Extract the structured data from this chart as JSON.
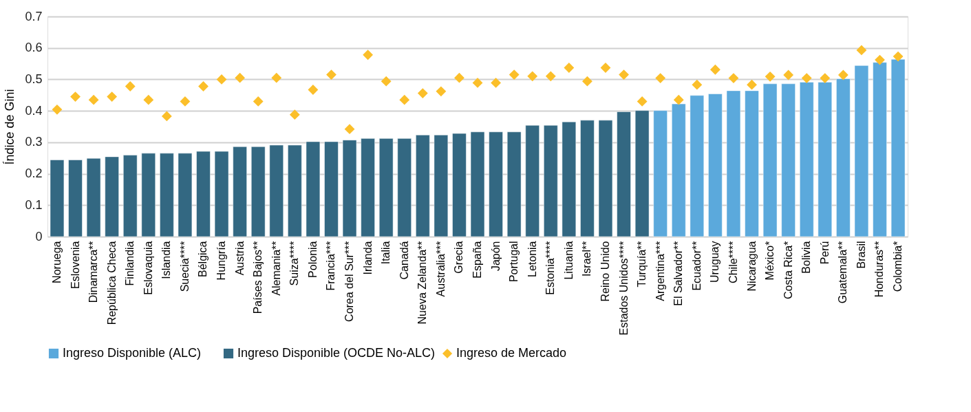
{
  "chart_data": {
    "type": "bar",
    "ylabel": "Índice de Gini",
    "categories": [
      "Noruega",
      "Eslovenia",
      "Dinamarca**",
      "República Checa",
      "Finlandia",
      "Eslovaquia",
      "Islandia",
      "Suecia****",
      "Bélgica",
      "Hungría",
      "Austria",
      "Países Bajos**",
      "Alemania**",
      "Suiza****",
      "Polonia",
      "Francia***",
      "Corea del Sur***",
      "Irlanda",
      "Italia",
      "Canadá",
      "Nueva Zelanda**",
      "Australia***",
      "Grecia",
      "España",
      "Japón",
      "Portugal",
      "Letonia",
      "Estonia****",
      "Lituania",
      "Israel**",
      "Reino Unido",
      "Estados Unidos****",
      "Turquía**",
      "Argentina***",
      "El Salvador**",
      "Ecuador**",
      "Uruguay",
      "Chile****",
      "Nicaragua",
      "México*",
      "Costa Rica*",
      "Bolivia",
      "Perú",
      "Guatemala**",
      "Brasil",
      "Honduras**",
      "Colombia*"
    ],
    "series": [
      {
        "name": "Ingreso Disponible (ALC)",
        "color": "#5ba9dc",
        "values": [
          null,
          null,
          null,
          null,
          null,
          null,
          null,
          null,
          null,
          null,
          null,
          null,
          null,
          null,
          null,
          null,
          null,
          null,
          null,
          null,
          null,
          null,
          null,
          null,
          null,
          null,
          null,
          null,
          null,
          null,
          null,
          null,
          null,
          0.401,
          0.422,
          0.449,
          0.454,
          0.464,
          0.464,
          0.486,
          0.486,
          0.491,
          0.491,
          0.502,
          0.544,
          0.554,
          0.564
        ]
      },
      {
        "name": "Ingreso Disponible (OCDE No-ALC)",
        "color": "#336882",
        "values": [
          0.244,
          0.244,
          0.249,
          0.254,
          0.259,
          0.265,
          0.265,
          0.265,
          0.271,
          0.271,
          0.286,
          0.286,
          0.291,
          0.291,
          0.302,
          0.302,
          0.307,
          0.312,
          0.312,
          0.312,
          0.323,
          0.323,
          0.328,
          0.333,
          0.333,
          0.333,
          0.354,
          0.354,
          0.365,
          0.37,
          0.37,
          0.397,
          0.401,
          null,
          null,
          null,
          null,
          null,
          null,
          null,
          null,
          null,
          null,
          null,
          null,
          null,
          null
        ]
      },
      {
        "name": "Ingreso de Mercado",
        "type": "scatter",
        "marker": "diamond",
        "color": "#fbbf2a",
        "values": [
          0.404,
          0.445,
          0.435,
          0.445,
          0.478,
          0.435,
          0.383,
          0.43,
          0.478,
          0.5,
          0.505,
          0.43,
          0.505,
          0.388,
          0.467,
          0.515,
          0.342,
          0.578,
          0.494,
          0.435,
          0.456,
          0.462,
          0.505,
          0.489,
          0.489,
          0.515,
          0.51,
          0.51,
          0.537,
          0.494,
          0.537,
          0.515,
          0.43,
          0.504,
          0.435,
          0.483,
          0.531,
          0.504,
          0.483,
          0.509,
          0.514,
          0.504,
          0.504,
          0.514,
          0.593,
          0.562,
          0.573
        ]
      }
    ],
    "ylim": [
      0,
      0.7
    ],
    "yticks": [
      0,
      0.1,
      0.2,
      0.3,
      0.4,
      0.5,
      0.6,
      0.7
    ],
    "grid": "y",
    "legend": "bottom"
  }
}
